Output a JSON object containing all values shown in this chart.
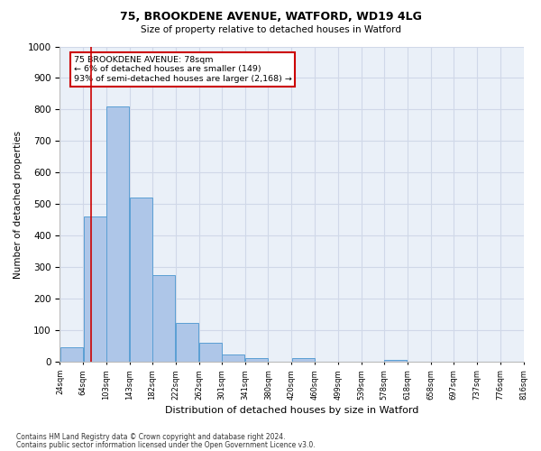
{
  "title1": "75, BROOKDENE AVENUE, WATFORD, WD19 4LG",
  "title2": "Size of property relative to detached houses in Watford",
  "xlabel": "Distribution of detached houses by size in Watford",
  "ylabel": "Number of detached properties",
  "footnote1": "Contains HM Land Registry data © Crown copyright and database right 2024.",
  "footnote2": "Contains public sector information licensed under the Open Government Licence v3.0.",
  "annotation_title": "75 BROOKDENE AVENUE: 78sqm",
  "annotation_line1": "← 6% of detached houses are smaller (149)",
  "annotation_line2": "93% of semi-detached houses are larger (2,168) →",
  "property_size": 78,
  "bar_left_edges": [
    24,
    64,
    103,
    143,
    182,
    222,
    262,
    301,
    341,
    380,
    420,
    460,
    499,
    539,
    578,
    618,
    658,
    697,
    737,
    776
  ],
  "bar_widths": [
    39,
    39,
    39,
    39,
    39,
    39,
    39,
    39,
    39,
    39,
    39,
    39,
    39,
    39,
    39,
    39,
    39,
    39,
    39,
    39
  ],
  "bar_heights": [
    46,
    460,
    810,
    520,
    275,
    125,
    60,
    25,
    13,
    0,
    13,
    0,
    0,
    0,
    8,
    0,
    0,
    0,
    0,
    0
  ],
  "bar_color": "#aec6e8",
  "bar_edge_color": "#5a9fd4",
  "red_line_x": 78,
  "ylim": [
    0,
    1000
  ],
  "yticks": [
    0,
    100,
    200,
    300,
    400,
    500,
    600,
    700,
    800,
    900,
    1000
  ],
  "xlim": [
    24,
    816
  ],
  "xtick_labels": [
    "24sqm",
    "64sqm",
    "103sqm",
    "143sqm",
    "182sqm",
    "222sqm",
    "262sqm",
    "301sqm",
    "341sqm",
    "380sqm",
    "420sqm",
    "460sqm",
    "499sqm",
    "539sqm",
    "578sqm",
    "618sqm",
    "658sqm",
    "697sqm",
    "737sqm",
    "776sqm",
    "816sqm"
  ],
  "xtick_positions": [
    24,
    64,
    103,
    143,
    182,
    222,
    262,
    301,
    341,
    380,
    420,
    460,
    499,
    539,
    578,
    618,
    658,
    697,
    737,
    776,
    816
  ],
  "grid_color": "#d0d8e8",
  "bg_color": "#eaf0f8",
  "annotation_box_color": "#cc0000"
}
